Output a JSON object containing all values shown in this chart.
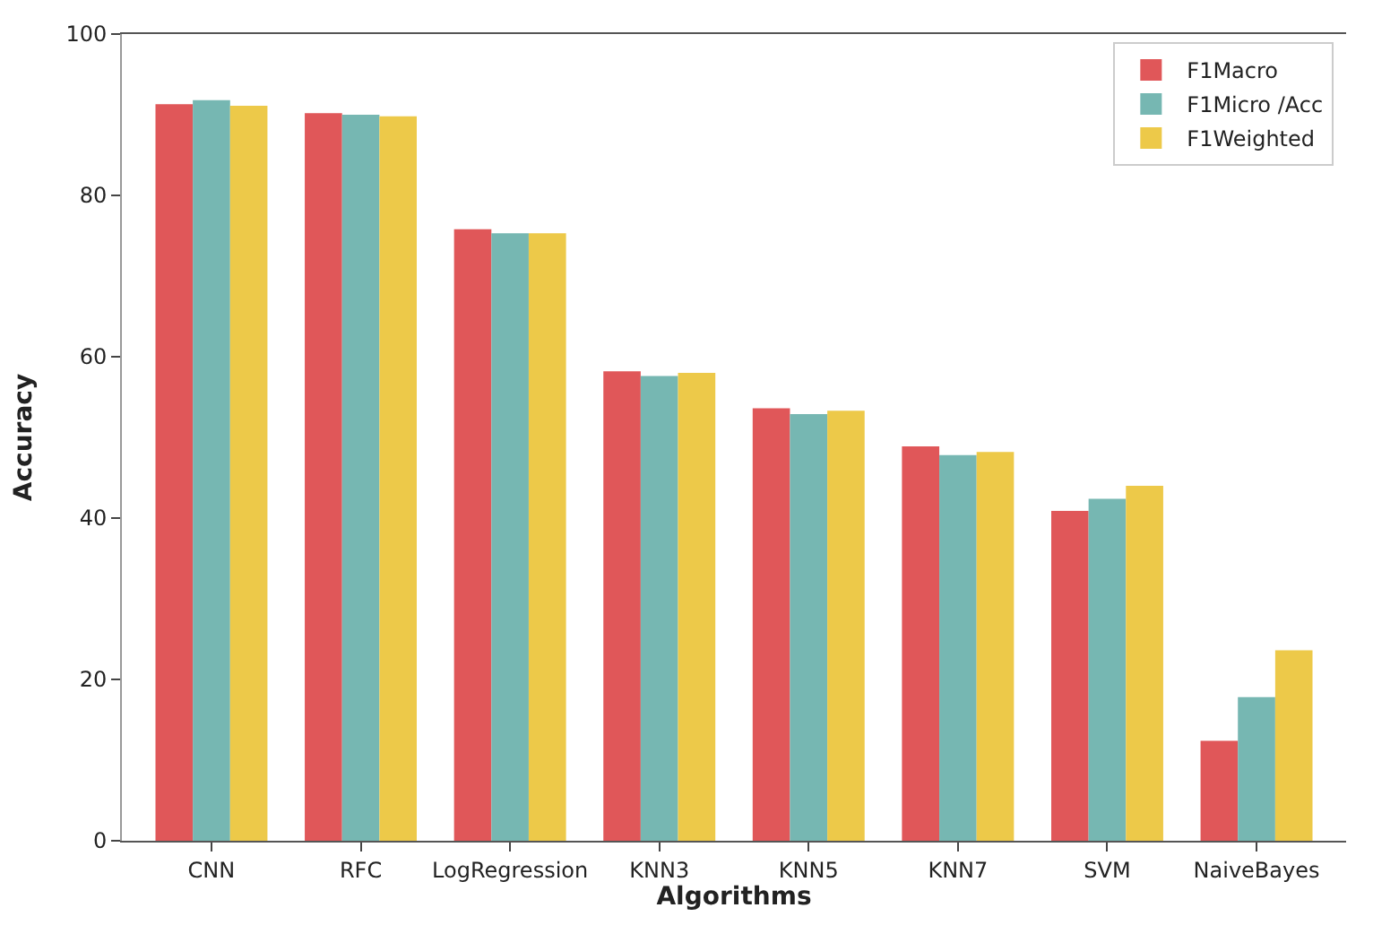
{
  "chart_data": {
    "type": "bar",
    "xlabel": "Algorithms",
    "ylabel": "Accuracy",
    "categories": [
      "CNN",
      "RFC",
      "LogRegression",
      "KNN3",
      "KNN5",
      "KNN7",
      "SVM",
      "NaiveBayes"
    ],
    "series": [
      {
        "name": "F1Macro",
        "color": "#e05759",
        "values": [
          91.3,
          90.2,
          75.8,
          58.2,
          53.6,
          48.9,
          40.9,
          12.4
        ]
      },
      {
        "name": "F1Micro /Acc",
        "color": "#76b7b2",
        "values": [
          91.8,
          90.0,
          75.3,
          57.6,
          52.9,
          47.8,
          42.4,
          17.8
        ]
      },
      {
        "name": "F1Weighted",
        "color": "#edc949",
        "values": [
          91.1,
          89.8,
          75.3,
          58.0,
          53.3,
          48.2,
          44.0,
          23.6
        ]
      }
    ],
    "ylim": [
      0,
      100
    ],
    "yticks": [
      0,
      20,
      40,
      60,
      80,
      100
    ],
    "legend": "top right"
  }
}
